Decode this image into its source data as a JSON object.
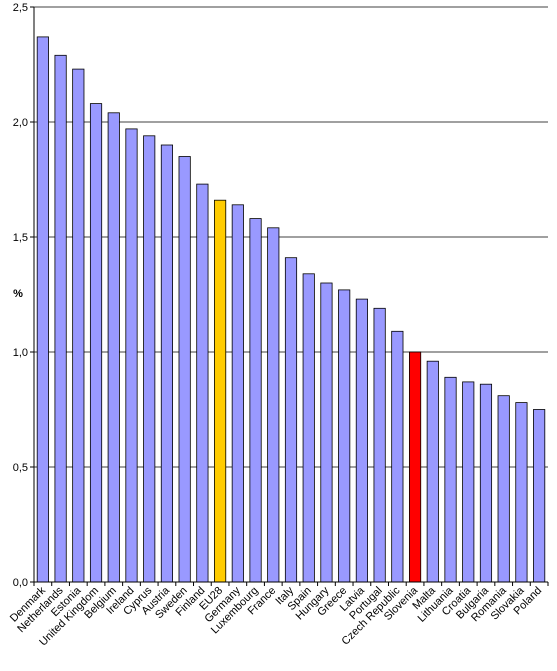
{
  "chart_data": {
    "type": "bar",
    "ylabel": "%",
    "ylim": [
      0,
      2.5
    ],
    "yticks": [
      "0,0",
      "0,5",
      "1,0",
      "1,5",
      "2,0",
      "2,5"
    ],
    "ytick_values": [
      0,
      0.5,
      1.0,
      1.5,
      2.0,
      2.5
    ],
    "grid": "horizontal",
    "categories": [
      "Denmark",
      "Netherlands",
      "Estonia",
      "United Kingdom",
      "Belgium",
      "Ireland",
      "Cyprus",
      "Austria",
      "Sweden",
      "Finland",
      "EU28",
      "Germany",
      "Luxembourg",
      "France",
      "Italy",
      "Spain",
      "Hungary",
      "Greece",
      "Latvia",
      "Portugal",
      "Czech Republic",
      "Slovenia",
      "Malta",
      "Lithuania",
      "Croatia",
      "Bulgaria",
      "Romania",
      "Slovakia",
      "Poland"
    ],
    "values": [
      2.37,
      2.29,
      2.23,
      2.08,
      2.04,
      1.97,
      1.94,
      1.9,
      1.85,
      1.73,
      1.66,
      1.64,
      1.58,
      1.54,
      1.41,
      1.34,
      1.3,
      1.27,
      1.23,
      1.19,
      1.09,
      1.0,
      0.96,
      0.89,
      0.87,
      0.86,
      0.81,
      0.78,
      0.75
    ],
    "colors": {
      "default": "#9999ff",
      "EU28": "#ffcc00",
      "Slovenia": "#ff0000",
      "outline": "#000000",
      "grid": "#000000"
    }
  }
}
